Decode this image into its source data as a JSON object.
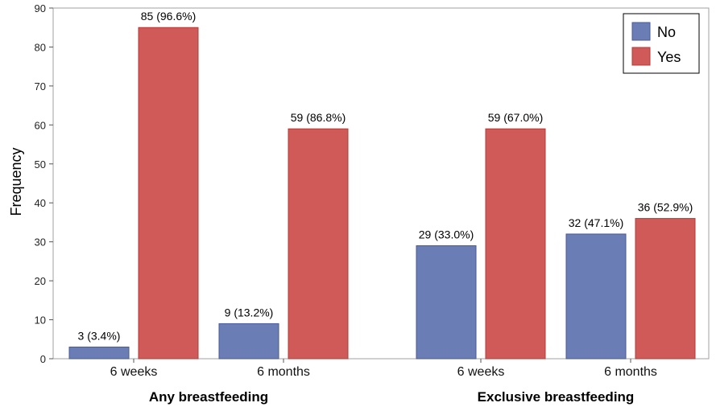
{
  "chart_data": {
    "type": "bar",
    "ylabel": "Frequency",
    "ylim": [
      0,
      90
    ],
    "yticks": [
      0,
      10,
      20,
      30,
      40,
      50,
      60,
      70,
      80,
      90
    ],
    "grid": false,
    "legend_placement": "top-right",
    "groups": [
      {
        "label": "Any breastfeeding",
        "categories": [
          {
            "label": "6 weeks",
            "values": [
              3,
              85
            ],
            "data_labels": [
              "3 (3.4%)",
              "85 (96.6%)"
            ]
          },
          {
            "label": "6 months",
            "values": [
              9,
              59
            ],
            "data_labels": [
              "9 (13.2%)",
              "59 (86.8%)"
            ]
          }
        ]
      },
      {
        "label": "Exclusive breastfeeding",
        "categories": [
          {
            "label": "6 weeks",
            "values": [
              29,
              59
            ],
            "data_labels": [
              "29 (33.0%)",
              "59 (67.0%)"
            ]
          },
          {
            "label": "6 months",
            "values": [
              32,
              36
            ],
            "data_labels": [
              "32 (47.1%)",
              "36 (52.9%)"
            ]
          }
        ]
      }
    ],
    "series": [
      {
        "name": "No",
        "color": "#6b7db5"
      },
      {
        "name": "Yes",
        "color": "#d05a58"
      }
    ]
  }
}
